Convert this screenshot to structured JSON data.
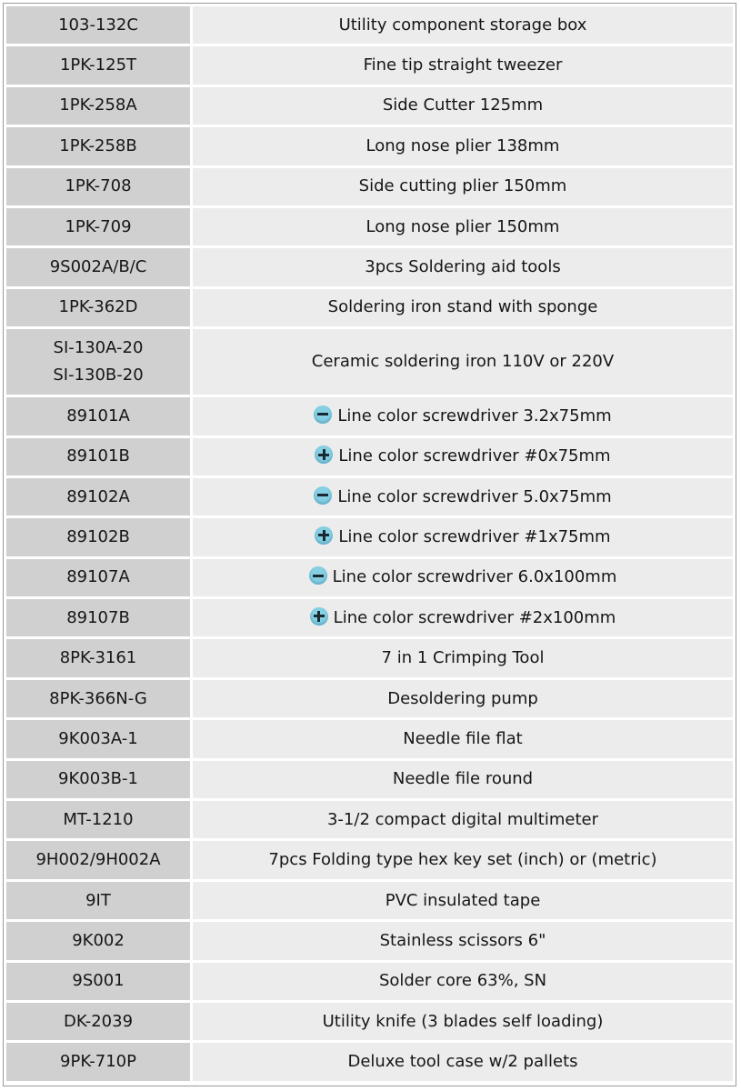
{
  "rows": [
    {
      "code": "103-132C",
      "description": "Utility component storage box"
    },
    {
      "code": "1PK-125T",
      "description": "Fine tip straight tweezer"
    },
    {
      "code": "1PK-258A",
      "description": "Side Cutter 125mm"
    },
    {
      "code": "1PK-258B",
      "description": "Long nose plier 138mm"
    },
    {
      "code": "1PK-708",
      "description": "Side cutting plier 150mm"
    },
    {
      "code": "1PK-709",
      "description": "Long nose plier 150mm"
    },
    {
      "code": "9S002A/B/C",
      "description": "3pcs Soldering aid tools"
    },
    {
      "code": "1PK-362D",
      "description": "Soldering iron stand with sponge"
    },
    {
      "code": "SI-130A-20",
      "code2": "SI-130B-20",
      "description": "Ceramic soldering iron 110V or 220V"
    },
    {
      "code": "89101A",
      "icon": "slotted-minus-icon",
      "description": "Line color screwdriver 3.2x75mm"
    },
    {
      "code": "89101B",
      "icon": "phillips-plus-icon",
      "description": "Line color screwdriver #0x75mm"
    },
    {
      "code": "89102A",
      "icon": "slotted-minus-icon",
      "description": "Line color screwdriver 5.0x75mm"
    },
    {
      "code": "89102B",
      "icon": "phillips-plus-icon",
      "description": "Line color screwdriver #1x75mm"
    },
    {
      "code": "89107A",
      "icon": "slotted-minus-icon",
      "description": "Line color screwdriver 6.0x100mm"
    },
    {
      "code": "89107B",
      "icon": "phillips-plus-icon",
      "description": "Line color screwdriver #2x100mm"
    },
    {
      "code": "8PK-3161",
      "description": "7 in 1 Crimping Tool"
    },
    {
      "code": "8PK-366N-G",
      "description": "Desoldering pump"
    },
    {
      "code": "9K003A-1",
      "description": "Needle file flat"
    },
    {
      "code": "9K003B-1",
      "description": "Needle file round"
    },
    {
      "code": "MT-1210",
      "description": "3-1/2 compact digital multimeter"
    },
    {
      "code": "9H002/9H002A",
      "description": "7pcs Folding type hex key set (inch) or (metric)"
    },
    {
      "code": "9IT",
      "description": "PVC insulated tape"
    },
    {
      "code": "9K002",
      "description": "Stainless scissors 6\""
    },
    {
      "code": "9S001",
      "description": "Solder core 63%, SN"
    },
    {
      "code": "DK-2039",
      "description": "Utility knife (3 blades self loading)"
    },
    {
      "code": "9PK-710P",
      "description": "Deluxe tool case w/2 pallets"
    }
  ],
  "colors": {
    "code_cell": "#d0d0d0",
    "desc_cell": "#ececec",
    "icon": "#86d0e4"
  }
}
